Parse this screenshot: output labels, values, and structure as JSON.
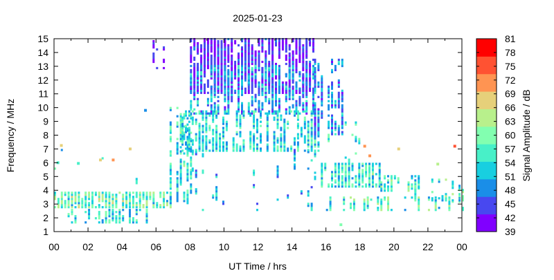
{
  "chart_data": {
    "type": "scatter",
    "title": "2025-01-23",
    "xlabel": "UT Time / hrs",
    "ylabel": "Frequency / MHz",
    "xlim": [
      0,
      24
    ],
    "ylim": [
      1,
      15
    ],
    "xticks": [
      "00",
      "02",
      "04",
      "06",
      "08",
      "10",
      "12",
      "14",
      "16",
      "18",
      "20",
      "22",
      "00"
    ],
    "yticks": [
      "1",
      "2",
      "3",
      "4",
      "5",
      "6",
      "7",
      "8",
      "9",
      "10",
      "11",
      "12",
      "13",
      "14",
      "15"
    ],
    "grid": false,
    "colorbar": {
      "label": "Signal Amplitude / dB",
      "range": [
        39,
        81
      ],
      "ticks": [
        "39",
        "42",
        "45",
        "48",
        "51",
        "54",
        "57",
        "60",
        "63",
        "66",
        "69",
        "72",
        "75",
        "78",
        "81"
      ],
      "band_colors": [
        "#8000ff",
        "#4848f0",
        "#1a8ee8",
        "#18cfe0",
        "#48f0c8",
        "#82ffb0",
        "#b8f08c",
        "#e6d07a",
        "#ff9452",
        "#ff5232",
        "#ff0000"
      ]
    },
    "point_clusters": [
      {
        "hours": [
          0,
          7
        ],
        "mhz": [
          2.7,
          3.8
        ],
        "db": [
          50,
          66
        ],
        "density": 0.85
      },
      {
        "hours": [
          0.8,
          5.6
        ],
        "mhz": [
          1.6,
          2.6
        ],
        "db": [
          47,
          62
        ],
        "density": 0.6
      },
      {
        "hours": [
          0,
          7
        ],
        "mhz": [
          4,
          7.5
        ],
        "db": [
          48,
          66
        ],
        "density": 0.07
      },
      {
        "hours": [
          5.8,
          6.6
        ],
        "mhz": [
          12.8,
          14.8
        ],
        "db": [
          39,
          46
        ],
        "density": 0.45
      },
      {
        "hours": [
          6.8,
          8
        ],
        "mhz": [
          3,
          10
        ],
        "db": [
          47,
          62
        ],
        "density": 0.6
      },
      {
        "hours": [
          8,
          15.3
        ],
        "mhz": [
          11,
          15
        ],
        "db": [
          39,
          47
        ],
        "density": 0.9
      },
      {
        "hours": [
          8,
          15.3
        ],
        "mhz": [
          9.5,
          13
        ],
        "db": [
          42,
          56
        ],
        "density": 0.75
      },
      {
        "hours": [
          7.5,
          15.5
        ],
        "mhz": [
          6.8,
          9.8
        ],
        "db": [
          47,
          60
        ],
        "density": 0.75
      },
      {
        "hours": [
          7.5,
          16
        ],
        "mhz": [
          2.5,
          7
        ],
        "db": [
          44,
          58
        ],
        "density": 0.18
      },
      {
        "hours": [
          15.3,
          17
        ],
        "mhz": [
          8,
          13.5
        ],
        "db": [
          42,
          55
        ],
        "density": 0.6
      },
      {
        "hours": [
          15.5,
          19
        ],
        "mhz": [
          6,
          9
        ],
        "db": [
          46,
          62
        ],
        "density": 0.3
      },
      {
        "hours": [
          15.7,
          19.3
        ],
        "mhz": [
          4.2,
          6
        ],
        "db": [
          47,
          62
        ],
        "density": 0.8
      },
      {
        "hours": [
          16,
          24
        ],
        "mhz": [
          2.5,
          3.5
        ],
        "db": [
          49,
          64
        ],
        "density": 0.55
      },
      {
        "hours": [
          19,
          21.5
        ],
        "mhz": [
          3.9,
          5
        ],
        "db": [
          49,
          64
        ],
        "density": 0.8
      },
      {
        "hours": [
          21,
          24
        ],
        "mhz": [
          3.2,
          4.8
        ],
        "db": [
          49,
          64
        ],
        "density": 0.45
      }
    ],
    "outliers": [
      [
        0.35,
        7.35,
        67
      ],
      [
        0.15,
        6.1,
        57
      ],
      [
        1.35,
        6.05,
        58
      ],
      [
        2.65,
        6.3,
        67
      ],
      [
        3.4,
        6.3,
        72
      ],
      [
        4.4,
        7.1,
        66
      ],
      [
        5.3,
        9.9,
        48
      ],
      [
        18.2,
        7.3,
        72
      ],
      [
        18.5,
        6.6,
        70
      ],
      [
        23.5,
        7.3,
        77
      ],
      [
        16.8,
        1.6,
        60
      ],
      [
        22.5,
        6.0,
        63
      ],
      [
        20.2,
        7.1,
        66
      ]
    ]
  }
}
